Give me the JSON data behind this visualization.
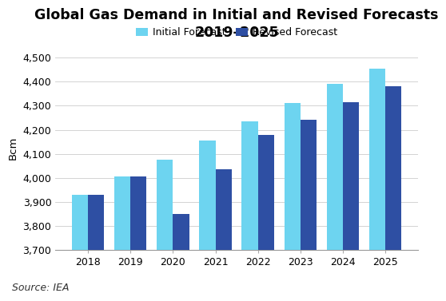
{
  "title": "Global Gas Demand in Initial and Revised Forecasts\n2019–2025",
  "ylabel": "Bcm",
  "source": "Source: IEA",
  "years": [
    2018,
    2019,
    2020,
    2021,
    2022,
    2023,
    2024,
    2025
  ],
  "initial_forecast": [
    3930,
    4005,
    4075,
    4155,
    4235,
    4310,
    4390,
    4455
  ],
  "revised_forecast": [
    3930,
    4005,
    3850,
    4035,
    4180,
    4240,
    4315,
    4380
  ],
  "color_initial": "#6DD4F0",
  "color_revised": "#2E4FA3",
  "ylim_min": 3700,
  "ylim_max": 4550,
  "yticks": [
    3700,
    3800,
    3900,
    4000,
    4100,
    4200,
    4300,
    4400,
    4500
  ],
  "legend_labels": [
    "Initial Forecast",
    "Revised Forecast"
  ],
  "bar_width": 0.38,
  "background_color": "#ffffff",
  "grid_color": "#cccccc",
  "title_fontsize": 12.5,
  "axis_fontsize": 9.5,
  "tick_fontsize": 9,
  "source_fontsize": 9
}
